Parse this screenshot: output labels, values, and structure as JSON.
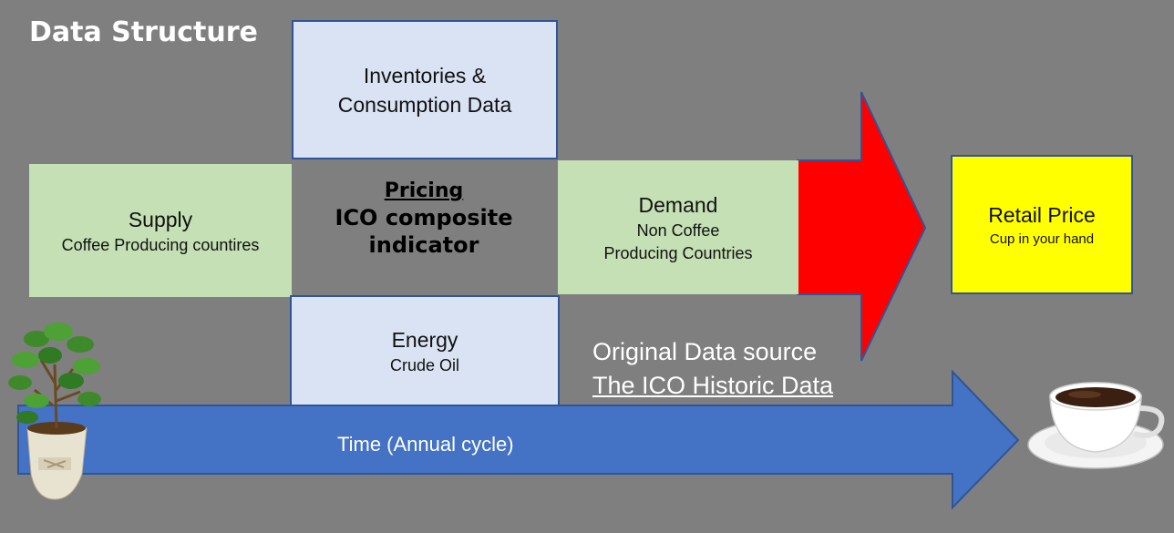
{
  "title": "Data Structure",
  "inventories": {
    "line1": "Inventories &",
    "line2": "Consumption Data"
  },
  "supply": {
    "title": "Supply",
    "subtitle": "Coffee Producing countires"
  },
  "pricing": {
    "line1": "Pricing",
    "line2": "ICO composite",
    "line3": "indicator"
  },
  "demand": {
    "title": "Demand",
    "line1": "Non Coffee",
    "line2": "Producing Countries"
  },
  "retail": {
    "title": "Retail Price",
    "subtitle": "Cup in your hand"
  },
  "energy": {
    "title": "Energy",
    "subtitle": "Crude Oil"
  },
  "source": {
    "line1": "Original Data source",
    "link": "The ICO Historic Data"
  },
  "timeline": {
    "label": "Time (Annual cycle)"
  },
  "colors": {
    "background": "#7f7f7f",
    "blue_box": "#dae3f3",
    "green_box": "#c5e0b4",
    "retail_box": "#ffff00",
    "red_arrow": "#ff0000",
    "time_arrow": "#4472c4"
  },
  "images": {
    "left": "coffee-plant",
    "right": "coffee-cup"
  }
}
